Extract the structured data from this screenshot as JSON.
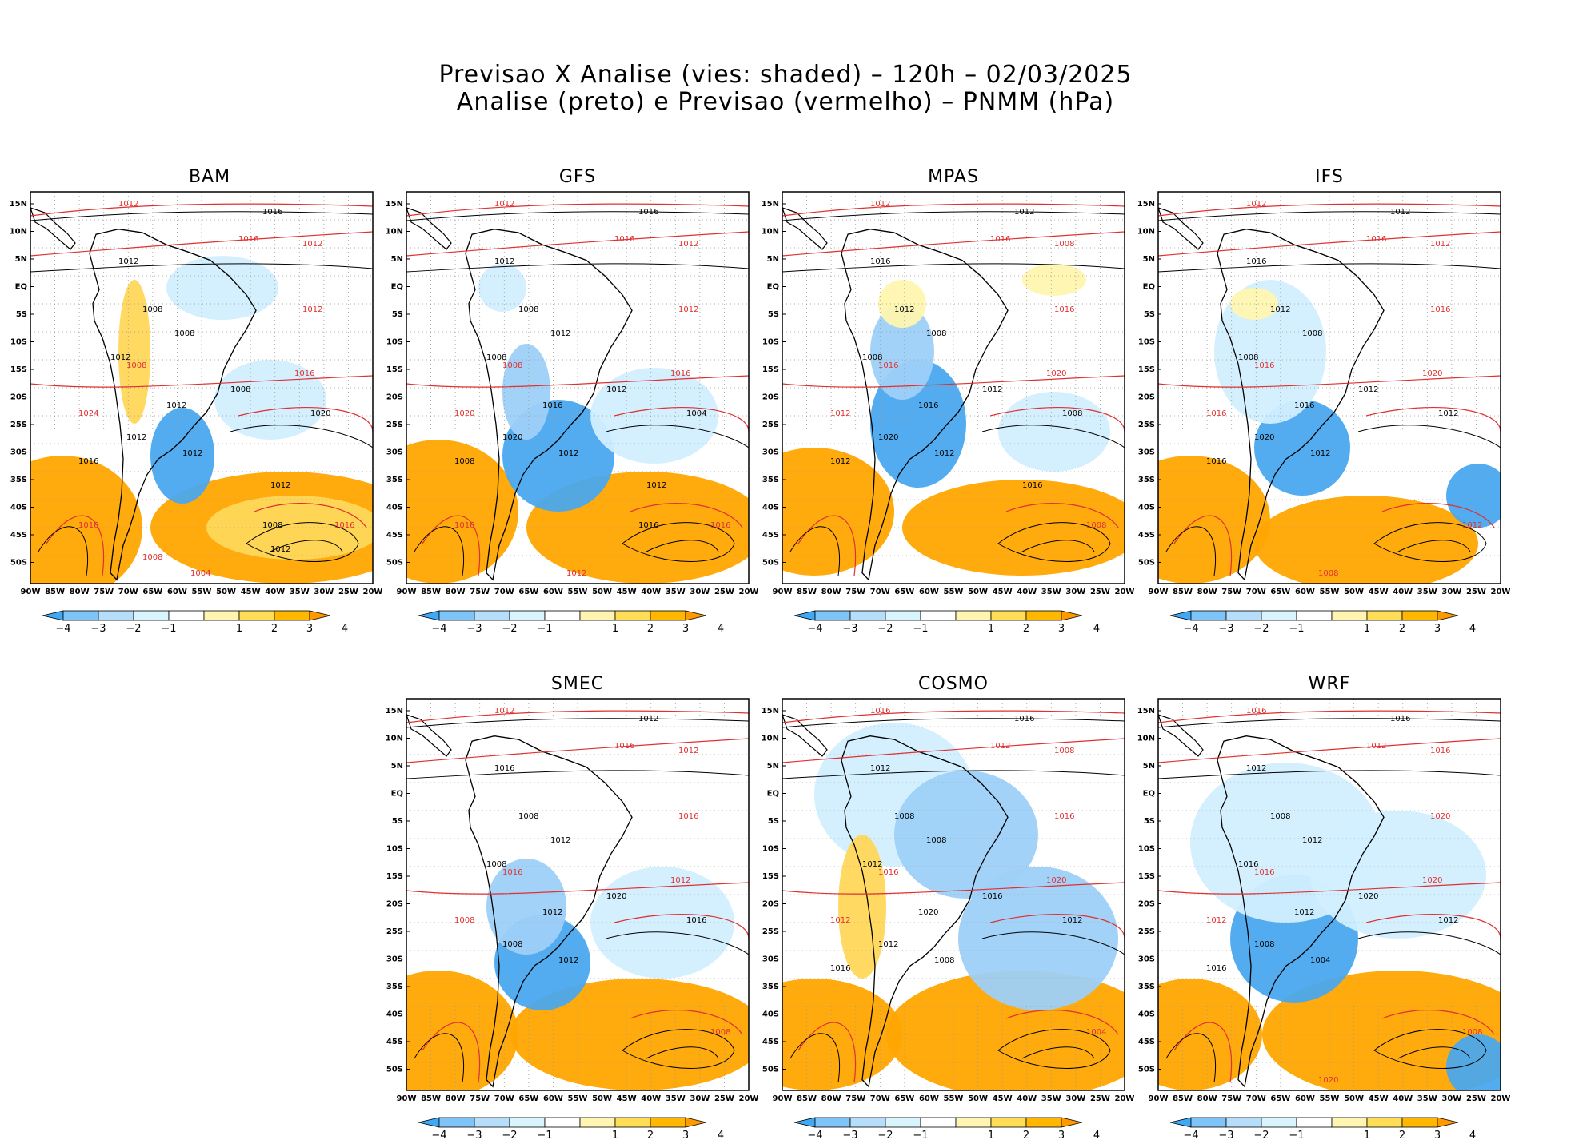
{
  "title": {
    "line1": "Previsao X Analise (vies: shaded) – 120h – 02/03/2025",
    "line2": "Analise (preto) e Previsao (vermelho) – PNMM (hPa)"
  },
  "axes": {
    "lat_labels": [
      "15N",
      "10N",
      "5N",
      "EQ",
      "5S",
      "10S",
      "15S",
      "20S",
      "25S",
      "30S",
      "35S",
      "40S",
      "45S",
      "50S"
    ],
    "lon_labels": [
      "90W",
      "85W",
      "80W",
      "75W",
      "70W",
      "65W",
      "60W",
      "55W",
      "50W",
      "45W",
      "40W",
      "35W",
      "30W",
      "25W",
      "20W"
    ]
  },
  "colorbar": {
    "labels": [
      "−4",
      "−3",
      "−2",
      "−1",
      "1",
      "2",
      "3",
      "4"
    ],
    "colors": [
      "#3fa9f5",
      "#7fc4f8",
      "#b6defb",
      "#d8f4fc",
      "#ffffff",
      "#fff5b0",
      "#ffdd55",
      "#ffb700",
      "#ff9900"
    ]
  },
  "colors": {
    "analysis": "#000000",
    "forecast": "#e03030",
    "neg_strong": "#4aa8ee",
    "neg_mid": "#9ed0f8",
    "neg_light": "#d2efff",
    "pos_light": "#fff5b0",
    "pos_mid": "#ffd75a",
    "pos_strong": "#ffa500"
  },
  "panels": [
    {
      "name": "BAM",
      "black_labels": [
        "1016",
        "1012",
        "1008",
        "1008",
        "1012",
        "1008",
        "1012",
        "1012",
        "1012",
        "1020",
        "1016",
        "1012",
        "1008",
        "1012"
      ],
      "red_labels": [
        "1012",
        "1016",
        "1012",
        "1012",
        "1016",
        "1024",
        "1016",
        "1008",
        "1004",
        "1016",
        "1008"
      ]
    },
    {
      "name": "GFS",
      "black_labels": [
        "1016",
        "1012",
        "1008",
        "1012",
        "1008",
        "1012",
        "1016",
        "1020",
        "1012",
        "1004",
        "1008",
        "1012",
        "1016"
      ],
      "red_labels": [
        "1012",
        "1016",
        "1012",
        "1012",
        "1016",
        "1020",
        "1016",
        "1008",
        "1012",
        "1016"
      ]
    },
    {
      "name": "MPAS",
      "black_labels": [
        "1012",
        "1016",
        "1012",
        "1008",
        "1008",
        "1012",
        "1016",
        "1020",
        "1012",
        "1008",
        "1012",
        "1016"
      ],
      "red_labels": [
        "1012",
        "1016",
        "1008",
        "1016",
        "1020",
        "1012",
        "1008",
        "1016"
      ]
    },
    {
      "name": "IFS",
      "black_labels": [
        "1012",
        "1016",
        "1012",
        "1008",
        "1008",
        "1012",
        "1016",
        "1020",
        "1012",
        "1012",
        "1016"
      ],
      "red_labels": [
        "1012",
        "1016",
        "1012",
        "1016",
        "1020",
        "1016",
        "1012",
        "1016",
        "1008"
      ]
    },
    {
      "name": "SMEC",
      "black_labels": [
        "1012",
        "1016",
        "1008",
        "1012",
        "1008",
        "1020",
        "1012",
        "1008",
        "1012",
        "1016"
      ],
      "red_labels": [
        "1012",
        "1016",
        "1012",
        "1016",
        "1012",
        "1008",
        "1008",
        "1016"
      ]
    },
    {
      "name": "COSMO",
      "black_labels": [
        "1016",
        "1012",
        "1008",
        "1008",
        "1012",
        "1016",
        "1020",
        "1012",
        "1008",
        "1012",
        "1016"
      ],
      "red_labels": [
        "1016",
        "1012",
        "1008",
        "1016",
        "1020",
        "1012",
        "1004",
        "1016"
      ]
    },
    {
      "name": "WRF",
      "black_labels": [
        "1016",
        "1012",
        "1008",
        "1012",
        "1016",
        "1020",
        "1012",
        "1008",
        "1004",
        "1012",
        "1016"
      ],
      "red_labels": [
        "1016",
        "1012",
        "1016",
        "1020",
        "1020",
        "1012",
        "1008",
        "1016",
        "1020"
      ]
    }
  ]
}
